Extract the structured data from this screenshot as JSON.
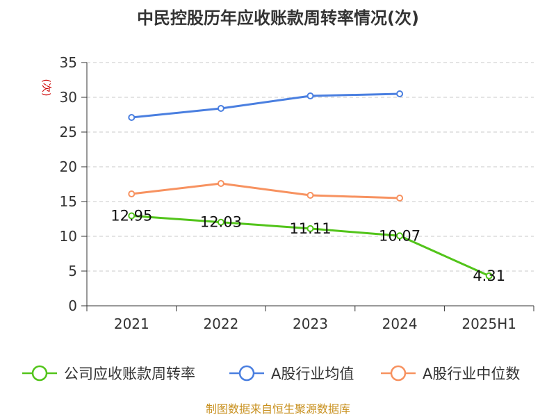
{
  "chart_data": {
    "type": "line",
    "title": "中民控股历年应收账款周转率情况(次)",
    "ylabel": "(次)",
    "xlabel": "",
    "categories": [
      "2021",
      "2022",
      "2023",
      "2024",
      "2025H1"
    ],
    "ylim": [
      0,
      35
    ],
    "yticks": [
      0,
      5,
      10,
      15,
      20,
      25,
      30,
      35
    ],
    "grid": true,
    "legend_position": "bottom",
    "series": [
      {
        "name": "公司应收账款周转率",
        "color": "#52c41a",
        "values": [
          12.95,
          12.03,
          11.11,
          10.07,
          4.31
        ],
        "labels": [
          "12.95",
          "12.03",
          "11.11",
          "10.07",
          "4.31"
        ]
      },
      {
        "name": "A股行业均值",
        "color": "#4a7fe0",
        "values": [
          27.1,
          28.4,
          30.2,
          30.5,
          null
        ]
      },
      {
        "name": "A股行业中位数",
        "color": "#f79260",
        "values": [
          16.1,
          17.6,
          15.9,
          15.5,
          null
        ]
      }
    ]
  },
  "source": "制图数据来自恒生聚源数据库"
}
